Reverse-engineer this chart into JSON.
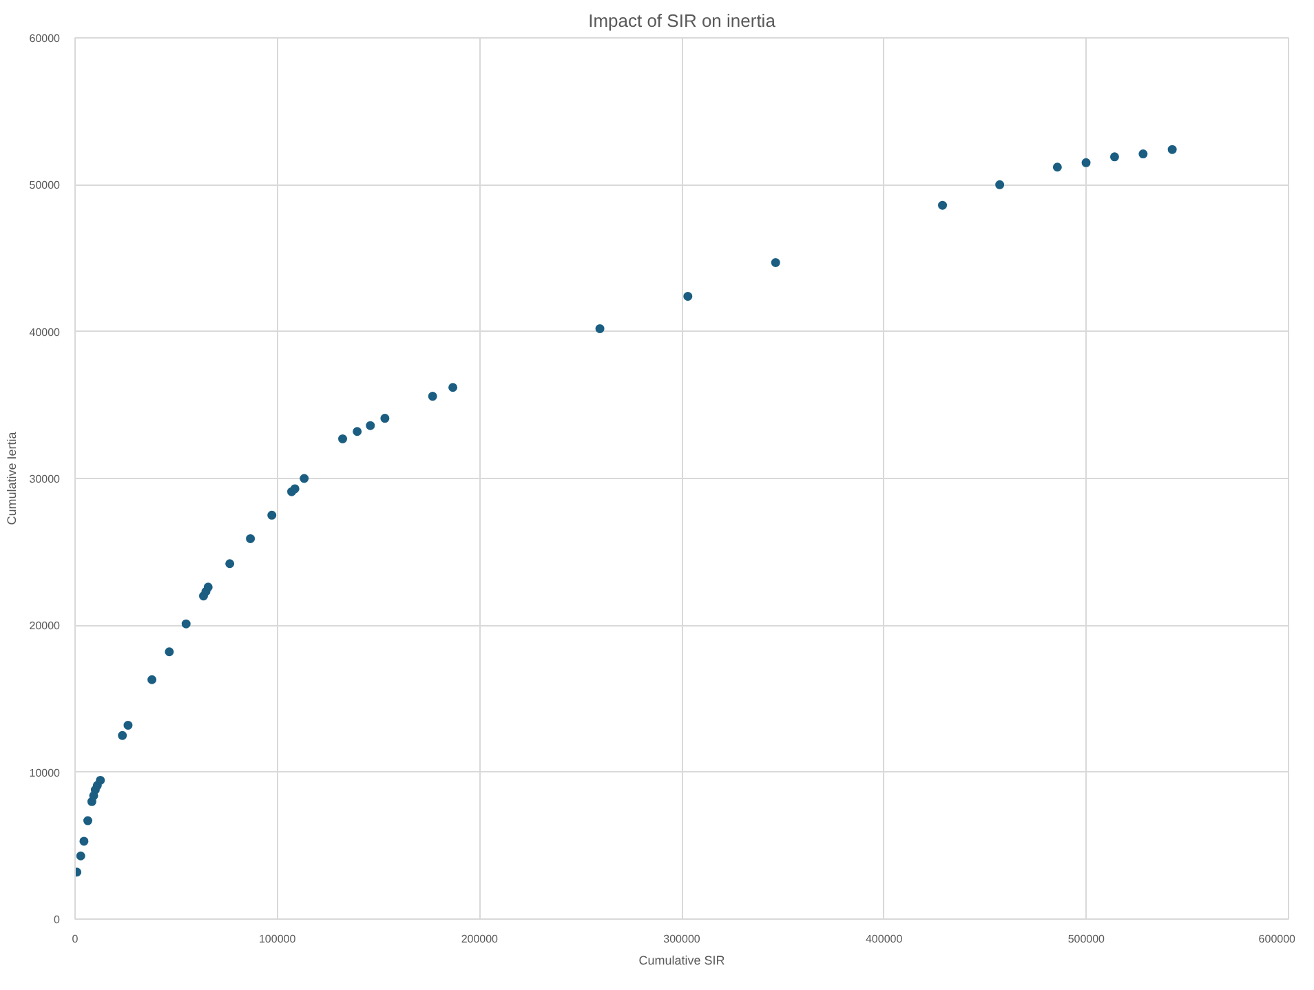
{
  "chart_data": {
    "type": "scatter",
    "title": "Impact of SIR on inertia",
    "xlabel": "Cumulative SIR",
    "ylabel": "Cumulative Iertia",
    "xlim": [
      0,
      600000
    ],
    "xticks": [
      0,
      100000,
      200000,
      300000,
      400000,
      500000,
      600000
    ],
    "ylim": [
      0,
      60000
    ],
    "yticks": [
      0,
      10000,
      20000,
      30000,
      40000,
      50000,
      60000
    ],
    "grid": true,
    "marker": "circle",
    "series": [
      {
        "color": "#1b5e82",
        "x": [
          900,
          2800,
          4400,
          6300,
          8300,
          9200,
          10000,
          11000,
          12500,
          23400,
          26200,
          38000,
          46600,
          54900,
          63500,
          64700,
          65800,
          76500,
          86700,
          97300,
          107100,
          108700,
          113300,
          132300,
          139500,
          146000,
          153200,
          176800,
          186800,
          259500,
          303000,
          346400,
          428900,
          457200,
          485700,
          499900,
          514000,
          528100,
          542500
        ],
        "values": [
          3200,
          4300,
          5300,
          6700,
          8000,
          8400,
          8800,
          9100,
          9450,
          12500,
          13200,
          16300,
          18200,
          20100,
          22000,
          22300,
          22600,
          24200,
          25900,
          27500,
          29100,
          29300,
          30000,
          32700,
          33200,
          33600,
          34100,
          35600,
          36200,
          40200,
          42400,
          44700,
          48600,
          50000,
          51200,
          51500,
          51900,
          52100,
          52400
        ]
      }
    ]
  }
}
